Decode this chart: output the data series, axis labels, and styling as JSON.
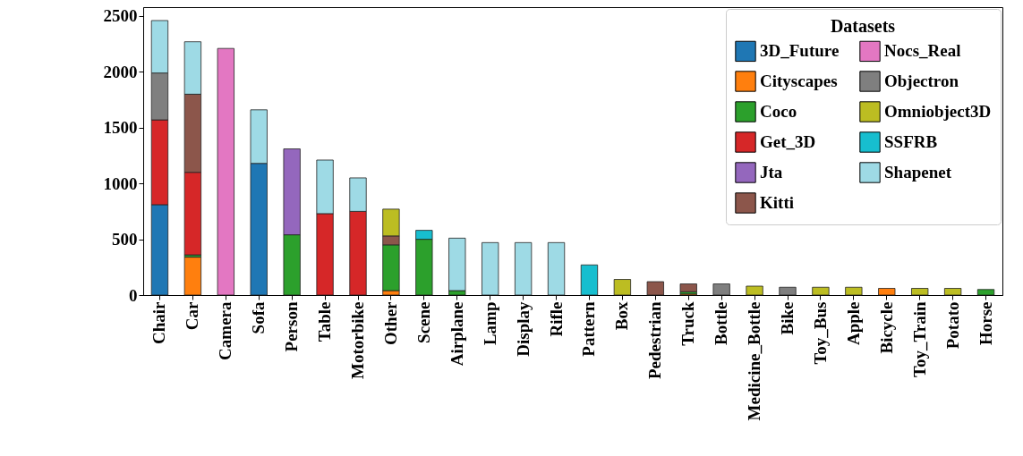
{
  "chart_data": {
    "type": "bar",
    "stacked": true,
    "legend_title": "Datasets",
    "legend": "top right",
    "grid": false,
    "categories": [
      "Chair",
      "Car",
      "Camera",
      "Sofa",
      "Person",
      "Table",
      "Motorbike",
      "Other",
      "Scene",
      "Airplane",
      "Lamp",
      "Display",
      "Rifle",
      "Pattern",
      "Box",
      "Pedestrian",
      "Truck",
      "Bottle",
      "Medicine_Bottle",
      "Bike",
      "Toy_Bus",
      "Apple",
      "Bicycle",
      "Toy_Train",
      "Potato",
      "Horse"
    ],
    "ylim": [
      0,
      2580
    ],
    "yticks": [
      0,
      500,
      1000,
      1500,
      2000,
      2500
    ],
    "series": [
      {
        "name": "3D_Future",
        "color": "#1f77b4",
        "values": [
          810,
          null,
          null,
          1180,
          null,
          null,
          null,
          null,
          null,
          null,
          null,
          null,
          null,
          null,
          null,
          null,
          null,
          null,
          null,
          null,
          null,
          null,
          null,
          null,
          null,
          null
        ]
      },
      {
        "name": "Cityscapes",
        "color": "#ff7f0e",
        "values": [
          null,
          340,
          null,
          null,
          null,
          null,
          null,
          40,
          null,
          null,
          null,
          null,
          null,
          null,
          null,
          null,
          10,
          null,
          null,
          null,
          null,
          null,
          60,
          null,
          null,
          null
        ]
      },
      {
        "name": "Coco",
        "color": "#2ca02c",
        "values": [
          null,
          20,
          null,
          null,
          540,
          null,
          null,
          410,
          500,
          40,
          null,
          null,
          null,
          null,
          null,
          null,
          20,
          null,
          null,
          null,
          null,
          null,
          null,
          null,
          null,
          50
        ]
      },
      {
        "name": "Get_3D",
        "color": "#d62728",
        "values": [
          760,
          740,
          null,
          null,
          null,
          730,
          750,
          null,
          null,
          null,
          null,
          null,
          null,
          null,
          null,
          null,
          null,
          null,
          null,
          null,
          null,
          null,
          null,
          null,
          null,
          null
        ]
      },
      {
        "name": "Jta",
        "color": "#9467bd",
        "values": [
          null,
          null,
          null,
          null,
          770,
          null,
          null,
          null,
          null,
          null,
          null,
          null,
          null,
          null,
          null,
          null,
          null,
          null,
          null,
          null,
          null,
          null,
          null,
          null,
          null,
          null
        ]
      },
      {
        "name": "Kitti",
        "color": "#8c564b",
        "values": [
          null,
          700,
          null,
          null,
          null,
          null,
          null,
          80,
          null,
          null,
          null,
          null,
          null,
          null,
          null,
          120,
          70,
          null,
          null,
          null,
          null,
          null,
          null,
          null,
          null,
          null
        ]
      },
      {
        "name": "Nocs_Real",
        "color": "#e377c2",
        "values": [
          null,
          null,
          2210,
          null,
          null,
          null,
          null,
          null,
          null,
          null,
          null,
          null,
          null,
          null,
          null,
          null,
          null,
          null,
          null,
          null,
          null,
          null,
          null,
          null,
          null,
          null
        ]
      },
      {
        "name": "Objectron",
        "color": "#7f7f7f",
        "values": [
          420,
          null,
          null,
          null,
          null,
          null,
          null,
          null,
          null,
          null,
          null,
          null,
          null,
          null,
          null,
          null,
          null,
          100,
          null,
          70,
          null,
          null,
          null,
          null,
          null,
          null
        ]
      },
      {
        "name": "Omniobject3D",
        "color": "#bcbd22",
        "values": [
          null,
          null,
          null,
          null,
          null,
          null,
          null,
          240,
          null,
          null,
          null,
          null,
          null,
          null,
          140,
          null,
          null,
          null,
          80,
          null,
          70,
          70,
          null,
          60,
          60,
          null
        ]
      },
      {
        "name": "SSFRB",
        "color": "#17becf",
        "values": [
          null,
          null,
          null,
          null,
          null,
          null,
          null,
          null,
          80,
          null,
          null,
          null,
          null,
          270,
          null,
          null,
          null,
          null,
          null,
          null,
          null,
          null,
          null,
          null,
          null,
          null
        ]
      },
      {
        "name": "Shapenet",
        "color": "#9edae5",
        "values": [
          470,
          470,
          null,
          480,
          null,
          480,
          300,
          null,
          null,
          470,
          470,
          470,
          470,
          null,
          null,
          null,
          null,
          null,
          null,
          null,
          null,
          null,
          null,
          null,
          null,
          null
        ]
      }
    ]
  }
}
